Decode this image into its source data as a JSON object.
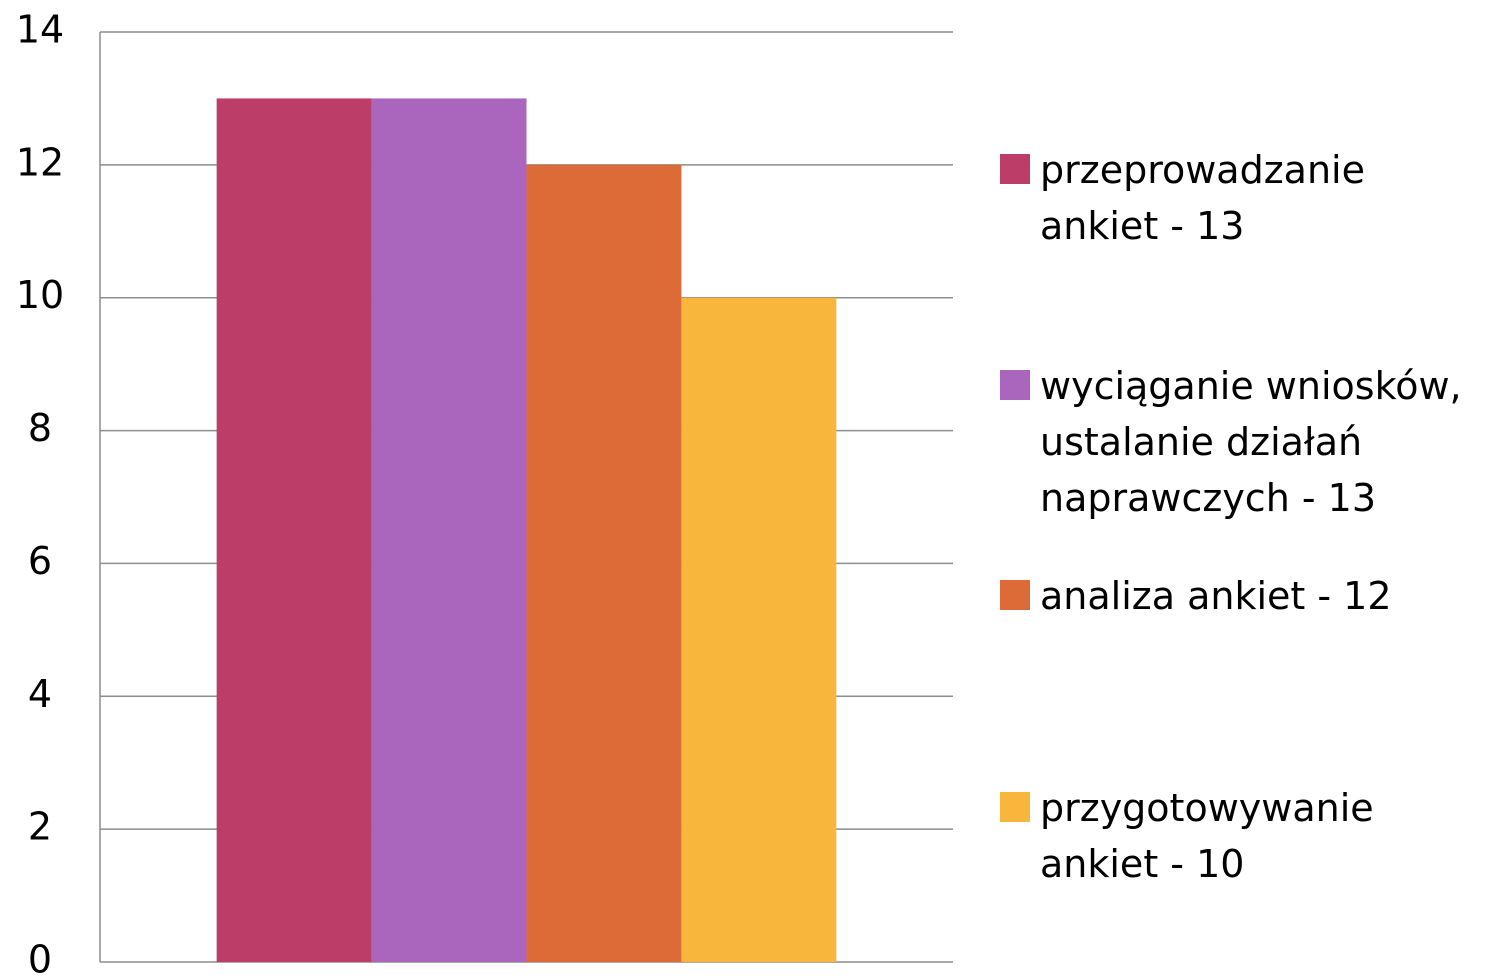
{
  "chart_data": {
    "type": "bar",
    "categories": [
      null
    ],
    "series": [
      {
        "name": "przeprowadzanie ankiet - 13",
        "color": "#bb3d68",
        "values": [
          13
        ]
      },
      {
        "name": "wyciąganie wniosków, ustalanie działań naprawczych - 13",
        "color": "#aa66bd",
        "values": [
          13
        ]
      },
      {
        "name": "analiza ankiet - 12",
        "color": "#dd6b38",
        "values": [
          12
        ]
      },
      {
        "name": "przygotowywanie ankiet - 10",
        "color": "#f8b73c",
        "values": [
          10
        ]
      }
    ],
    "ylim": [
      0,
      14
    ],
    "yticks": [
      0,
      2,
      4,
      6,
      8,
      10,
      12,
      14
    ],
    "grid": true,
    "legend": "right"
  }
}
